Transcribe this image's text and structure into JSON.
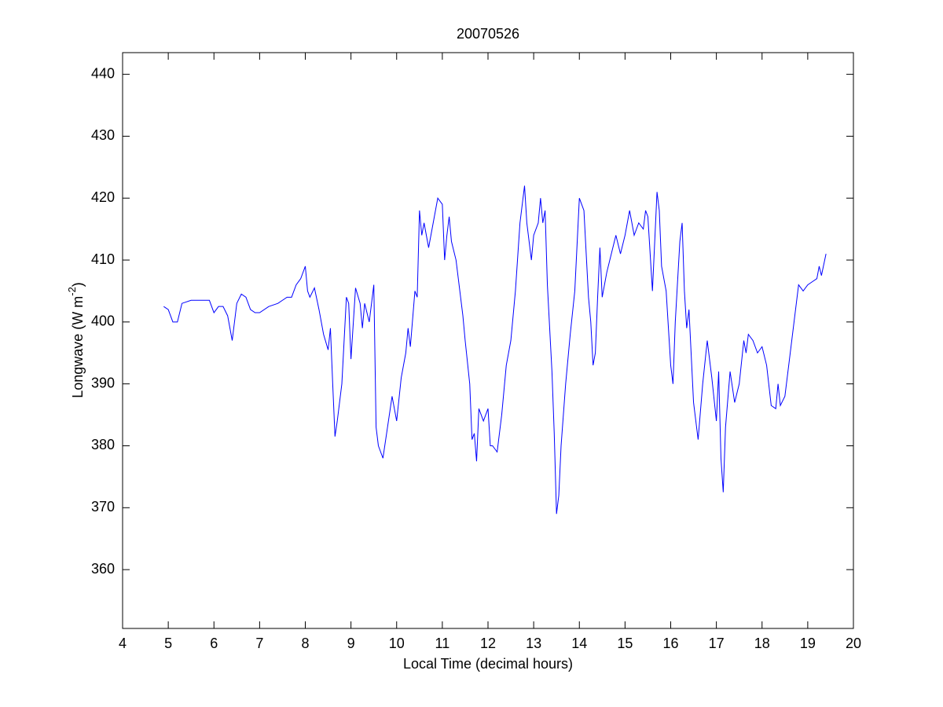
{
  "chart_data": {
    "type": "line",
    "title": "20070526",
    "xlabel": "Local Time (decimal hours)",
    "ylabel_parts": [
      "Longwave (W m",
      "-2",
      ")"
    ],
    "xlim": [
      4,
      20
    ],
    "ylim": [
      350.5,
      443.5
    ],
    "xticks": [
      4,
      5,
      6,
      7,
      8,
      9,
      10,
      11,
      12,
      13,
      14,
      15,
      16,
      17,
      18,
      19,
      20
    ],
    "yticks": [
      360,
      370,
      380,
      390,
      400,
      410,
      420,
      430,
      440
    ],
    "grid": false,
    "series": [
      {
        "color": "#0000ff",
        "x": [
          4.9,
          5.0,
          5.1,
          5.2,
          5.3,
          5.5,
          5.7,
          5.9,
          6.0,
          6.1,
          6.2,
          6.3,
          6.4,
          6.5,
          6.6,
          6.7,
          6.8,
          6.9,
          7.0,
          7.2,
          7.4,
          7.5,
          7.6,
          7.7,
          7.8,
          7.9,
          8.0,
          8.05,
          8.1,
          8.2,
          8.3,
          8.4,
          8.5,
          8.55,
          8.6,
          8.65,
          8.7,
          8.8,
          8.9,
          8.95,
          9.0,
          9.1,
          9.2,
          9.25,
          9.3,
          9.4,
          9.5,
          9.55,
          9.6,
          9.7,
          9.8,
          9.9,
          10.0,
          10.1,
          10.2,
          10.25,
          10.3,
          10.4,
          10.45,
          10.5,
          10.55,
          10.6,
          10.7,
          10.8,
          10.9,
          11.0,
          11.05,
          11.1,
          11.15,
          11.2,
          11.3,
          11.4,
          11.45,
          11.5,
          11.6,
          11.65,
          11.7,
          11.75,
          11.8,
          11.9,
          12.0,
          12.05,
          12.1,
          12.2,
          12.3,
          12.4,
          12.5,
          12.6,
          12.7,
          12.8,
          12.85,
          12.9,
          12.95,
          13.0,
          13.1,
          13.15,
          13.2,
          13.25,
          13.3,
          13.4,
          13.45,
          13.5,
          13.55,
          13.6,
          13.7,
          13.8,
          13.9,
          14.0,
          14.05,
          14.1,
          14.2,
          14.25,
          14.3,
          14.35,
          14.4,
          14.45,
          14.5,
          14.6,
          14.7,
          14.8,
          14.9,
          15.0,
          15.1,
          15.2,
          15.3,
          15.4,
          15.45,
          15.5,
          15.6,
          15.7,
          15.75,
          15.8,
          15.9,
          16.0,
          16.05,
          16.1,
          16.2,
          16.25,
          16.3,
          16.35,
          16.4,
          16.5,
          16.6,
          16.7,
          16.8,
          16.9,
          17.0,
          17.05,
          17.1,
          17.15,
          17.2,
          17.3,
          17.4,
          17.5,
          17.6,
          17.65,
          17.7,
          17.8,
          17.9,
          18.0,
          18.1,
          18.2,
          18.3,
          18.35,
          18.4,
          18.5,
          18.6,
          18.7,
          18.8,
          18.9,
          19.0,
          19.1,
          19.2,
          19.25,
          19.3,
          19.4
        ],
        "values": [
          402.5,
          402,
          400,
          400,
          403,
          403.5,
          403.5,
          403.5,
          401.5,
          402.5,
          402.5,
          401,
          397,
          403,
          404.5,
          404,
          402,
          401.5,
          401.5,
          402.5,
          403,
          403.5,
          404,
          404,
          406,
          407,
          409,
          405,
          404,
          405.5,
          402,
          398,
          395.5,
          399,
          390,
          381.5,
          384,
          390,
          404,
          403,
          394,
          405.5,
          403,
          399,
          403,
          400,
          406,
          383,
          380,
          378,
          383,
          388,
          384,
          391,
          395,
          399,
          396,
          405,
          404,
          418,
          414,
          416,
          412,
          416,
          420,
          419,
          410,
          414,
          417,
          413,
          410,
          404,
          401,
          397,
          390,
          381,
          382,
          377.5,
          386,
          384,
          386,
          380,
          380,
          379,
          385,
          393,
          397,
          405,
          416,
          422,
          416,
          413,
          410,
          414,
          416,
          420,
          416,
          418,
          406,
          392,
          382,
          369,
          372,
          380,
          390,
          398,
          405,
          420,
          419,
          418,
          404,
          400,
          393,
          395,
          404,
          412,
          404,
          408,
          411,
          414,
          411,
          414,
          418,
          414,
          416,
          415,
          418,
          417,
          405,
          421,
          418,
          409,
          405,
          393,
          390,
          400,
          413,
          416,
          405,
          399,
          402,
          387,
          381,
          390,
          397,
          391,
          384,
          392,
          378,
          372.5,
          383,
          392,
          387,
          390,
          397,
          395,
          398,
          397,
          395,
          396,
          393,
          386.5,
          386,
          390,
          386.5,
          388,
          394,
          400,
          406,
          405,
          406,
          406.5,
          407,
          409,
          407.5,
          411
        ]
      }
    ]
  }
}
